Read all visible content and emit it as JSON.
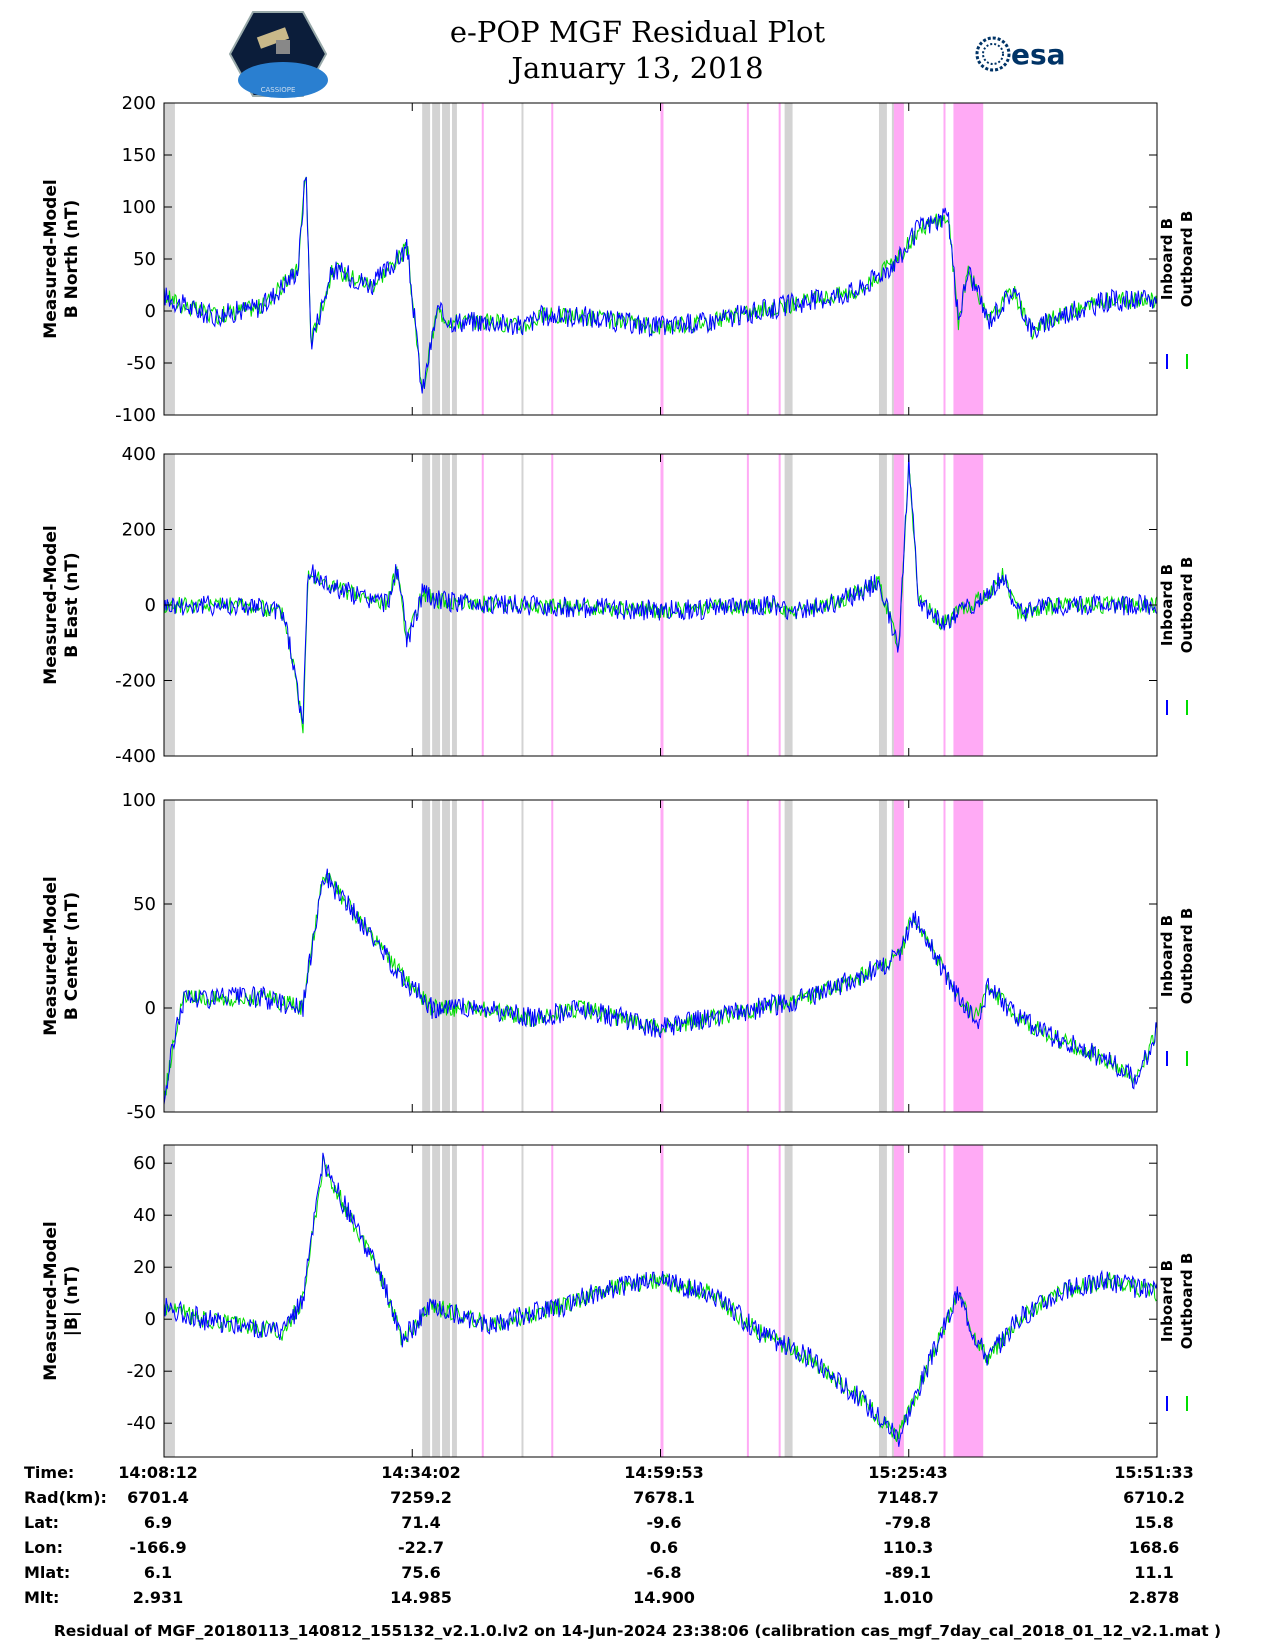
{
  "header": {
    "title": "e-POP MGF Residual Plot",
    "date": "January 13, 2018",
    "left_logo": "cassiope-mission-logo",
    "left_logo_text": "CASSIOPE",
    "right_logo": "esa-logo",
    "right_logo_text": "esa"
  },
  "colors": {
    "inboard": "#0000ff",
    "outboard": "#00dd00",
    "gray_band": "#d3d3d3",
    "pink_band": "#ffaaf5"
  },
  "chart_data": [
    {
      "type": "line",
      "panel": "b-north",
      "ylabel_line1": "Measured-Model",
      "ylabel_line2": "B North (nT)",
      "ylim": [
        -100,
        200
      ],
      "yticks": [
        -100,
        -50,
        0,
        50,
        100,
        150,
        200
      ],
      "legend": [
        "Inboard B",
        "Outboard B"
      ],
      "series": [
        {
          "name": "Inboard B",
          "x": [
            0,
            0.02,
            0.05,
            0.1,
            0.135,
            0.143,
            0.148,
            0.17,
            0.21,
            0.245,
            0.26,
            0.275,
            0.29,
            0.33,
            0.36,
            0.38,
            0.42,
            0.47,
            0.5,
            0.55,
            0.6,
            0.65,
            0.7,
            0.74,
            0.76,
            0.79,
            0.8,
            0.81,
            0.83,
            0.855,
            0.875,
            0.9,
            0.95,
            1.0
          ],
          "y": [
            15,
            5,
            -5,
            5,
            40,
            140,
            -30,
            40,
            25,
            60,
            -80,
            0,
            -10,
            -10,
            -15,
            -5,
            -5,
            -12,
            -15,
            -10,
            0,
            10,
            20,
            50,
            80,
            90,
            -10,
            40,
            -10,
            20,
            -20,
            -5,
            10,
            10
          ]
        }
      ]
    },
    {
      "type": "line",
      "panel": "b-east",
      "ylabel_line1": "Measured-Model",
      "ylabel_line2": "B East (nT)",
      "ylim": [
        -400,
        400
      ],
      "yticks": [
        -400,
        -200,
        0,
        200,
        400
      ],
      "legend": [
        "Inboard B",
        "Outboard B"
      ],
      "series": [
        {
          "name": "Inboard B",
          "x": [
            0,
            0.08,
            0.12,
            0.13,
            0.14,
            0.145,
            0.16,
            0.2,
            0.225,
            0.235,
            0.245,
            0.26,
            0.28,
            0.35,
            0.5,
            0.55,
            0.62,
            0.63,
            0.68,
            0.72,
            0.74,
            0.75,
            0.76,
            0.785,
            0.8,
            0.83,
            0.845,
            0.86,
            0.9,
            1.0
          ],
          "y": [
            0,
            0,
            -20,
            -150,
            -320,
            90,
            60,
            20,
            5,
            100,
            -100,
            30,
            10,
            0,
            -15,
            -10,
            0,
            -20,
            10,
            60,
            -110,
            380,
            10,
            -50,
            -20,
            30,
            80,
            -20,
            0,
            0
          ]
        }
      ]
    },
    {
      "type": "line",
      "panel": "b-center",
      "ylabel_line1": "Measured-Model",
      "ylabel_line2": "B Center (nT)",
      "ylim": [
        -50,
        100
      ],
      "yticks": [
        -50,
        0,
        50,
        100
      ],
      "legend": [
        "Inboard B",
        "Outboard B"
      ],
      "series": [
        {
          "name": "Inboard B",
          "x": [
            0,
            0.01,
            0.02,
            0.1,
            0.14,
            0.16,
            0.2,
            0.24,
            0.27,
            0.32,
            0.37,
            0.42,
            0.5,
            0.55,
            0.6,
            0.65,
            0.7,
            0.74,
            0.755,
            0.8,
            0.82,
            0.83,
            0.86,
            0.9,
            0.95,
            0.98,
            1.0
          ],
          "y": [
            -45,
            -15,
            5,
            5,
            0,
            65,
            40,
            15,
            0,
            0,
            -5,
            0,
            -10,
            -5,
            0,
            5,
            15,
            25,
            45,
            5,
            -5,
            10,
            -5,
            -15,
            -25,
            -35,
            -10
          ]
        }
      ]
    },
    {
      "type": "line",
      "panel": "b-magnitude",
      "ylabel_line1": "Measured-Model",
      "ylabel_line2": "|B| (nT)",
      "ylim": [
        -53,
        67
      ],
      "yticks": [
        -40,
        -20,
        0,
        20,
        40,
        60
      ],
      "legend": [
        "Inboard B",
        "Outboard B"
      ],
      "series": [
        {
          "name": "Inboard B",
          "x": [
            0,
            0.04,
            0.12,
            0.14,
            0.16,
            0.22,
            0.24,
            0.27,
            0.33,
            0.4,
            0.45,
            0.5,
            0.55,
            0.6,
            0.65,
            0.7,
            0.74,
            0.8,
            0.815,
            0.83,
            0.86,
            0.9,
            0.95,
            1.0
          ],
          "y": [
            5,
            0,
            -5,
            8,
            60,
            15,
            -8,
            5,
            -2,
            5,
            12,
            15,
            10,
            -5,
            -15,
            -30,
            -45,
            10,
            -5,
            -15,
            0,
            10,
            15,
            10
          ]
        }
      ]
    }
  ],
  "bands": {
    "gray": [
      [
        0.0,
        0.011
      ],
      [
        0.26,
        0.268
      ],
      [
        0.27,
        0.278
      ],
      [
        0.28,
        0.288
      ],
      [
        0.29,
        0.295
      ],
      [
        0.36,
        0.362
      ],
      [
        0.625,
        0.633
      ],
      [
        0.72,
        0.728
      ],
      [
        0.733,
        0.741
      ],
      [
        0.743,
        0.745
      ]
    ],
    "pink": [
      [
        0.32,
        0.322
      ],
      [
        0.39,
        0.392
      ],
      [
        0.5,
        0.503
      ],
      [
        0.587,
        0.589
      ],
      [
        0.619,
        0.621
      ],
      [
        0.735,
        0.745
      ],
      [
        0.785,
        0.787
      ],
      [
        0.795,
        0.825
      ]
    ]
  },
  "xaxis": {
    "columns": [
      {
        "time": "14:08:12",
        "rad": "6701.4",
        "lat": "6.9",
        "lon": "-166.9",
        "mlat": "6.1",
        "mlt": "2.931"
      },
      {
        "time": "14:34:02",
        "rad": "7259.2",
        "lat": "71.4",
        "lon": "-22.7",
        "mlat": "75.6",
        "mlt": "14.985"
      },
      {
        "time": "14:59:53",
        "rad": "7678.1",
        "lat": "-9.6",
        "lon": "0.6",
        "mlat": "-6.8",
        "mlt": "14.900"
      },
      {
        "time": "15:25:43",
        "rad": "7148.7",
        "lat": "-79.8",
        "lon": "110.3",
        "mlat": "-89.1",
        "mlt": "1.010"
      },
      {
        "time": "15:51:33",
        "rad": "6710.2",
        "lat": "15.8",
        "lon": "168.6",
        "mlat": "11.1",
        "mlt": "2.878"
      }
    ],
    "row_labels": {
      "time": "Time:",
      "rad": "Rad(km):",
      "lat": "Lat:",
      "lon": "Lon:",
      "mlat": "Mlat:",
      "mlt": "Mlt:"
    }
  },
  "caption": "Residual of MGF_20180113_140812_155132_v2.1.0.lv2 on 14-Jun-2024 23:38:06 (calibration cas_mgf_7day_cal_2018_01_12_v2.1.mat )"
}
